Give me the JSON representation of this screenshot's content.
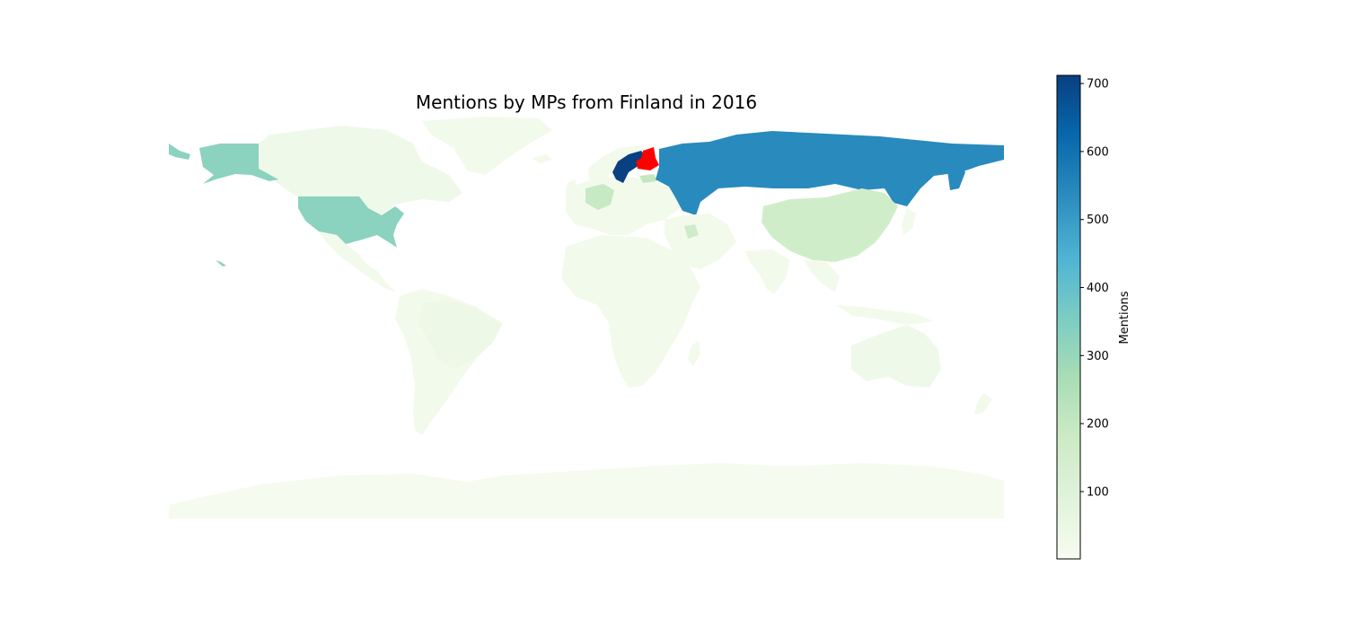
{
  "chart_data": {
    "type": "choropleth",
    "title": "Mentions by MPs from Finland in 2016",
    "source_country": "Finland",
    "highlight_color": "#ff0000",
    "colormap": "GnBu",
    "colormap_stops": [
      "#f7fcf0",
      "#e0f3db",
      "#ccebc5",
      "#a8ddb5",
      "#7bccc4",
      "#4eb3d3",
      "#2b8cbe",
      "#0868ac",
      "#084081"
    ],
    "colorbar": {
      "label": "Mentions",
      "vmin": 1,
      "vmax": 712,
      "ticks": [
        100,
        200,
        300,
        400,
        500,
        600,
        700
      ],
      "tick_labels": [
        "100",
        "200",
        "300",
        "400",
        "500",
        "600",
        "700"
      ]
    },
    "regions": [
      {
        "name": "Sweden",
        "value": 712
      },
      {
        "name": "Russia",
        "value": 540
      },
      {
        "name": "United States",
        "value": 325
      },
      {
        "name": "Estonia",
        "value": 200
      },
      {
        "name": "Germany",
        "value": 190
      },
      {
        "name": "China",
        "value": 160
      },
      {
        "name": "Syria",
        "value": 170
      },
      {
        "name": "Canada",
        "value": 30
      },
      {
        "name": "Brazil",
        "value": 40
      },
      {
        "name": "Australia",
        "value": 30
      },
      {
        "name": "Antarctica",
        "value": 10
      }
    ]
  }
}
